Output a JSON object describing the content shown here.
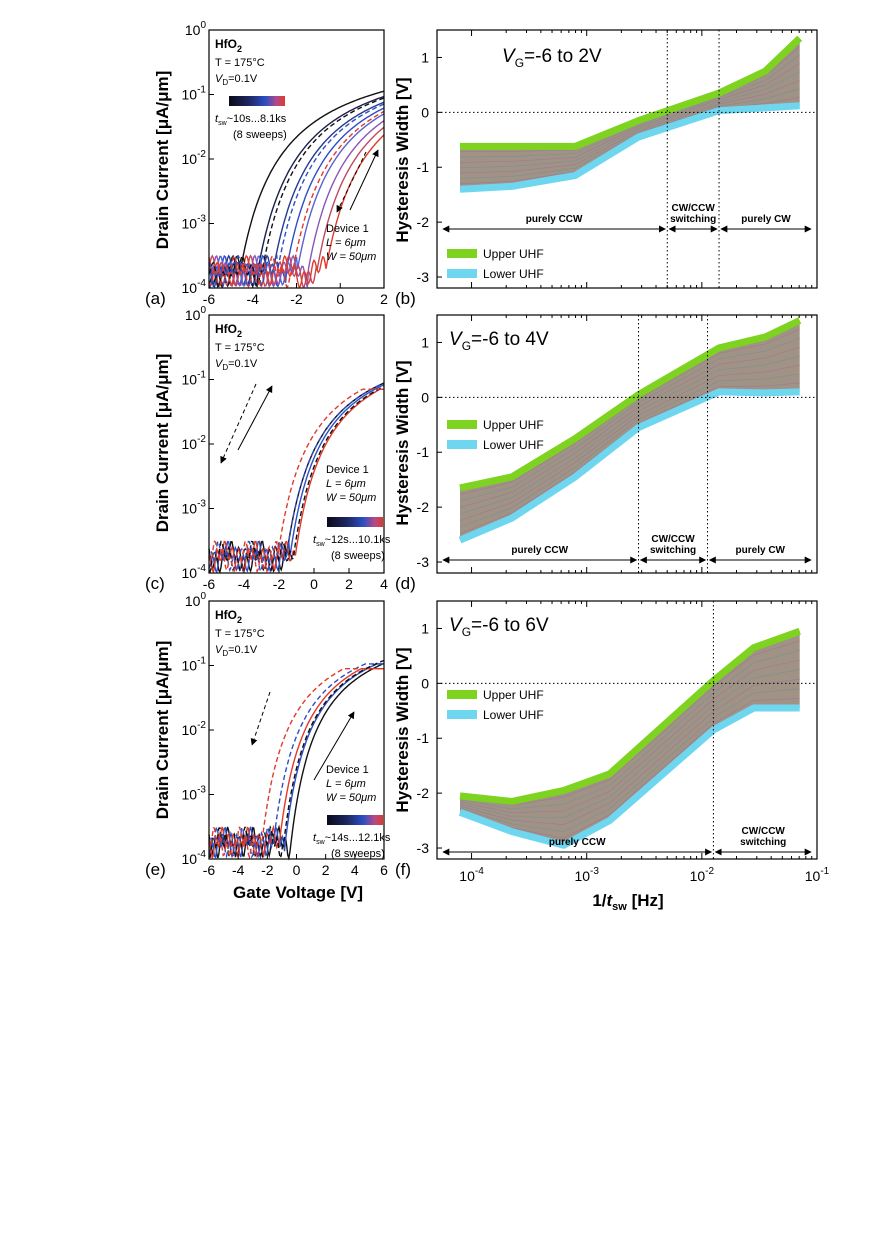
{
  "colors": {
    "upper": "#7ed321",
    "lower": "#6fd6f0",
    "band": "#8f7f6f",
    "blue_dark": "#1d2660",
    "blue": "#2b4fc4",
    "red": "#e03a2a"
  },
  "shared": {
    "left_ylabel": "Drain Current [μA/μm]",
    "left_xlabel": "Gate Voltage [V]",
    "right_ylabel": "Hysteresis Width [V]",
    "right_xlabel_pre": "1/",
    "right_xlabel_t": "t",
    "right_xlabel_sub": "sw",
    "right_xlabel_post": " [Hz]",
    "legend_upper": "Upper UHF",
    "legend_lower": "Lower UHF",
    "material": "HfO",
    "material_sub": "2",
    "temperature": "T = 175°C",
    "drain_voltage": "V",
    "drain_voltage_sub": "D",
    "drain_voltage_val": "=0.1V",
    "device": "Device 1",
    "length": "L = 6μm",
    "width": "W = 50μm",
    "sweeps": "(8 sweeps)"
  },
  "chart_data": [
    {
      "panel": "(a)",
      "type": "line",
      "xlabel": "",
      "ylabel": "Drain Current [μA/μm]",
      "xlim": [
        -6,
        2
      ],
      "ylim_log": [
        -4,
        0
      ],
      "xticks": [
        "-6",
        "-4",
        "-2",
        "0",
        "2"
      ],
      "yticks": [
        "10-4",
        "10-3",
        "10-2",
        "10-1",
        "100"
      ],
      "tsw_label": "~10s...8.1ks",
      "series": [
        {
          "name": "sweep 1 up",
          "vth": -4.6,
          "style": "solid",
          "color_idx": 0
        },
        {
          "name": "sweep 2 up",
          "vth": -3.8,
          "style": "solid",
          "color_idx": 1
        },
        {
          "name": "sweep 3 up",
          "vth": -3.1,
          "style": "solid",
          "color_idx": 2
        },
        {
          "name": "sweep 4 up",
          "vth": -2.5,
          "style": "solid",
          "color_idx": 3
        },
        {
          "name": "sweep 5 up",
          "vth": -2.0,
          "style": "solid",
          "color_idx": 4
        },
        {
          "name": "sweep 6 up",
          "vth": -1.5,
          "style": "solid",
          "color_idx": 5
        },
        {
          "name": "sweep 7 up",
          "vth": -1.1,
          "style": "solid",
          "color_idx": 6
        },
        {
          "name": "sweep 8 up",
          "vth": -0.7,
          "style": "solid",
          "color_idx": 7
        },
        {
          "name": "sweep 1 down",
          "vth": -3.6,
          "style": "dashed",
          "color_idx": 0
        },
        {
          "name": "sweep 4 down",
          "vth": -2.9,
          "style": "dashed",
          "color_idx": 3
        },
        {
          "name": "sweep 8 down",
          "vth": -2.2,
          "style": "dashed",
          "color_idx": 7
        }
      ],
      "ion": -0.65
    },
    {
      "panel": "(b)",
      "type": "area",
      "xlabel": "",
      "ylabel": "Hysteresis Width [V]",
      "title": "V",
      "title_sub": "G",
      "title_rest": "=-6 to 2V",
      "xlim_log": [
        -4.3,
        -1
      ],
      "ylim": [
        -3.2,
        1.5
      ],
      "yticks": [
        "-3",
        "-2",
        "-1",
        "0",
        "1"
      ],
      "x": [
        7.94e-05,
        0.000224,
        0.000794,
        0.00282,
        0.0141,
        0.0355,
        0.0708
      ],
      "upper": [
        -0.62,
        -0.62,
        -0.62,
        -0.15,
        0.35,
        0.75,
        1.35
      ],
      "lower": [
        -1.4,
        -1.35,
        -1.15,
        -0.45,
        0.03,
        0.08,
        0.12
      ],
      "regions": [
        "purely CCW",
        "CW/CCW",
        "switching",
        "purely CW"
      ],
      "dividers": [
        0.00501,
        0.0141
      ]
    },
    {
      "panel": "(c)",
      "type": "line",
      "xlabel": "",
      "ylabel": "Drain Current [μA/μm]",
      "xlim": [
        -6,
        4
      ],
      "ylim_log": [
        -4,
        0
      ],
      "xticks": [
        "-6",
        "-4",
        "-2",
        "0",
        "2",
        "4"
      ],
      "yticks": [
        "10-4",
        "10-3",
        "10-2",
        "10-1",
        "100"
      ],
      "tsw_label": "~12s...10.1ks",
      "series": [
        {
          "name": "sweep 1 up",
          "vth": -1.6,
          "style": "solid",
          "color_idx": 0
        },
        {
          "name": "sweep 4 up",
          "vth": -1.4,
          "style": "solid",
          "color_idx": 3
        },
        {
          "name": "sweep 8 up",
          "vth": -1.1,
          "style": "solid",
          "color_idx": 7
        },
        {
          "name": "sweep 1 down",
          "vth": -1.2,
          "style": "dashed",
          "color_idx": 0
        },
        {
          "name": "sweep 4 down",
          "vth": -1.6,
          "style": "dashed",
          "color_idx": 3
        },
        {
          "name": "sweep 8 down",
          "vth": -2.1,
          "style": "dashed",
          "color_idx": 7
        }
      ],
      "ion": -1.0
    },
    {
      "panel": "(d)",
      "type": "area",
      "xlabel": "",
      "ylabel": "Hysteresis Width [V]",
      "title": "V",
      "title_sub": "G",
      "title_rest": "=-6 to 4V",
      "xlim_log": [
        -4.3,
        -1
      ],
      "ylim": [
        -3.2,
        1.5
      ],
      "yticks": [
        "-3",
        "-2",
        "-1",
        "0",
        "1"
      ],
      "x": [
        7.94e-05,
        0.000224,
        0.000794,
        0.00282,
        0.0141,
        0.0355,
        0.0708
      ],
      "upper": [
        -1.65,
        -1.45,
        -0.75,
        0.05,
        0.9,
        1.1,
        1.4
      ],
      "lower": [
        -2.6,
        -2.2,
        -1.45,
        -0.55,
        0.1,
        0.08,
        0.1
      ],
      "regions": [
        "purely CCW",
        "CW/CCW",
        "switching",
        "purely CW"
      ],
      "dividers": [
        0.00282,
        0.0112
      ]
    },
    {
      "panel": "(e)",
      "type": "line",
      "xlabel": "Gate Voltage [V]",
      "ylabel": "Drain Current [μA/μm]",
      "xlim": [
        -6,
        6
      ],
      "ylim_log": [
        -4,
        0
      ],
      "xticks": [
        "-6",
        "-4",
        "-2",
        "0",
        "2",
        "4",
        "6"
      ],
      "yticks": [
        "10-4",
        "10-3",
        "10-2",
        "10-1",
        "100"
      ],
      "tsw_label": "~14s...12.1ks",
      "series": [
        {
          "name": "sweep 1 up",
          "vth": -0.4,
          "style": "solid",
          "color_idx": 0
        },
        {
          "name": "sweep 4 up",
          "vth": -0.8,
          "style": "solid",
          "color_idx": 3
        },
        {
          "name": "sweep 8 up",
          "vth": -1.2,
          "style": "solid",
          "color_idx": 7
        },
        {
          "name": "sweep 1 down",
          "vth": -0.9,
          "style": "dashed",
          "color_idx": 0
        },
        {
          "name": "sweep 4 down",
          "vth": -1.6,
          "style": "dashed",
          "color_idx": 3
        },
        {
          "name": "sweep 8 down",
          "vth": -2.4,
          "style": "dashed",
          "color_idx": 7
        }
      ],
      "ion": -0.9
    },
    {
      "panel": "(f)",
      "type": "area",
      "xlabel": "1/t_sw [Hz]",
      "ylabel": "Hysteresis Width [V]",
      "title": "V",
      "title_sub": "G",
      "title_rest": "=-6 to 6V",
      "xlim_log": [
        -4.3,
        -1
      ],
      "ylim": [
        -3.2,
        1.5
      ],
      "xticks": [
        "10-4",
        "10-3",
        "10-2",
        "10-1"
      ],
      "yticks": [
        "-3",
        "-2",
        "-1",
        "0",
        "1"
      ],
      "x": [
        7.94e-05,
        0.000224,
        0.000631,
        0.00158,
        0.0126,
        0.0282,
        0.0708
      ],
      "upper": [
        -2.05,
        -2.15,
        -1.95,
        -1.65,
        0.05,
        0.65,
        0.95
      ],
      "lower": [
        -2.35,
        -2.7,
        -2.95,
        -2.5,
        -0.85,
        -0.45,
        -0.45
      ],
      "regions": [
        "purely CCW",
        "CW/CCW",
        "switching"
      ],
      "dividers": [
        0.0126
      ]
    }
  ]
}
